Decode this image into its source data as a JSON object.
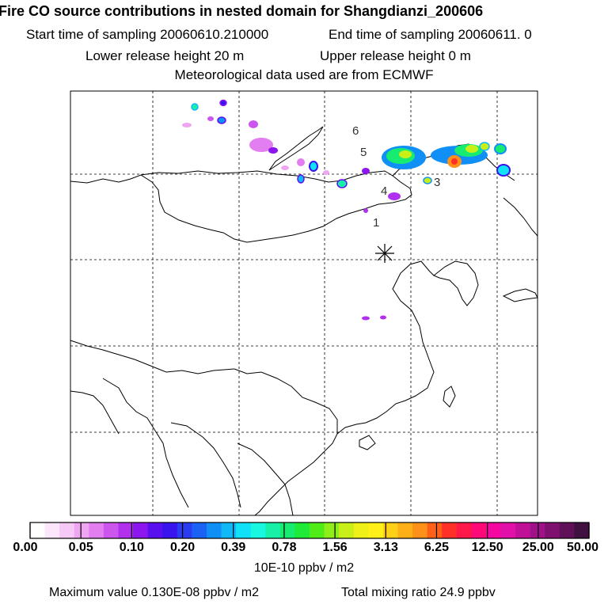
{
  "header": {
    "title": "Fire CO source contributions in nested domain for Shangdianzi_200606",
    "start_sampling": "Start time of sampling 20060610.210000",
    "end_sampling": "End time of sampling 20060611.     0",
    "lower_release": "Lower release height   20 m",
    "upper_release": "Upper release height    0 m",
    "met_data": "Meteorological data used are from ECMWF"
  },
  "map": {
    "receptor_marker": "asterisk",
    "region_labels": [
      "1",
      "3",
      "4",
      "5",
      "6"
    ]
  },
  "colorbar": {
    "tick_labels": [
      "0.00",
      "0.05",
      "0.10",
      "0.20",
      "0.39",
      "0.78",
      "1.56",
      "3.13",
      "6.25",
      "12.50",
      "25.00",
      "50.00"
    ],
    "unit": "10E-10 ppbv / m2",
    "colors": [
      "#ffffff",
      "#fbe6fb",
      "#f5c8f5",
      "#efa6f2",
      "#e27ef0",
      "#cc55ee",
      "#b030ee",
      "#8c16ee",
      "#5a10ee",
      "#3a14ee",
      "#2a3cf2",
      "#1a62f4",
      "#1090f6",
      "#10b8f8",
      "#10e0f8",
      "#18f8e0",
      "#18f0a8",
      "#18ec70",
      "#20ea38",
      "#50ec18",
      "#90ee18",
      "#c8f018",
      "#eef018",
      "#fff018",
      "#ffd018",
      "#ffb018",
      "#ff9018",
      "#ff6018",
      "#ff3028",
      "#ff1848",
      "#ff0878",
      "#f408a0",
      "#e010a8",
      "#c01098",
      "#a01088",
      "#801070",
      "#601058",
      "#401040"
    ]
  },
  "footer": {
    "max_value": "Maximum value  0.130E-08 ppbv / m2",
    "total_mixing": "Total mixing ratio       24.9 ppbv"
  }
}
